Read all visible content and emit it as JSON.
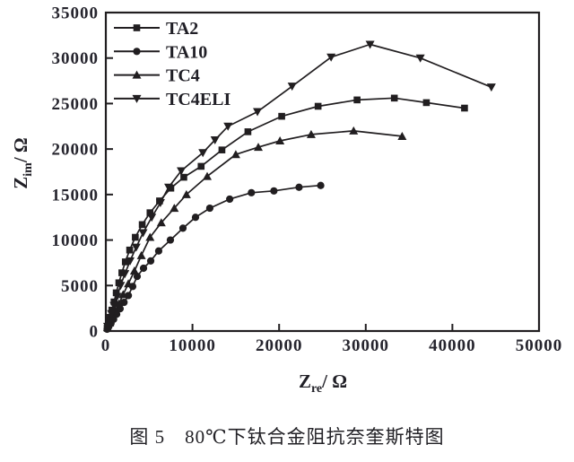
{
  "figure": {
    "caption": "图 5　80℃下钛合金阻抗奈奎斯特图"
  },
  "colors": {
    "background": "#ffffff",
    "ink": "#211e20",
    "text": "#26252e"
  },
  "chart_data": {
    "type": "line",
    "title": "",
    "xlabel": {
      "base": "Z",
      "sub": "re",
      "rest": "/ Ω"
    },
    "ylabel": {
      "base": "Z",
      "sub": "im",
      "rest": "/ Ω"
    },
    "xlim": [
      0,
      50000
    ],
    "ylim": [
      0,
      35000
    ],
    "xticks": [
      0,
      10000,
      20000,
      30000,
      40000,
      50000
    ],
    "yticks": [
      0,
      5000,
      10000,
      15000,
      20000,
      25000,
      30000,
      35000
    ],
    "grid": false,
    "legend_position": "top-left",
    "series": [
      {
        "name": "TA2",
        "marker": "square",
        "points": [
          [
            150,
            300
          ],
          [
            300,
            800
          ],
          [
            500,
            1500
          ],
          [
            700,
            2300
          ],
          [
            950,
            3200
          ],
          [
            1200,
            4200
          ],
          [
            1500,
            5300
          ],
          [
            1850,
            6400
          ],
          [
            2250,
            7600
          ],
          [
            2750,
            8900
          ],
          [
            3400,
            10300
          ],
          [
            4200,
            11700
          ],
          [
            5100,
            13000
          ],
          [
            6200,
            14300
          ],
          [
            7500,
            15700
          ],
          [
            9000,
            16900
          ],
          [
            11000,
            18100
          ],
          [
            13400,
            19900
          ],
          [
            16400,
            21900
          ],
          [
            20300,
            23600
          ],
          [
            24500,
            24700
          ],
          [
            29000,
            25400
          ],
          [
            33300,
            25600
          ],
          [
            37000,
            25100
          ],
          [
            41400,
            24500
          ]
        ]
      },
      {
        "name": "TA10",
        "marker": "circle",
        "points": [
          [
            150,
            200
          ],
          [
            350,
            500
          ],
          [
            600,
            850
          ],
          [
            900,
            1300
          ],
          [
            1250,
            1850
          ],
          [
            1650,
            2450
          ],
          [
            2100,
            3150
          ],
          [
            2600,
            3900
          ],
          [
            3100,
            4900
          ],
          [
            3620,
            6000
          ],
          [
            4350,
            6900
          ],
          [
            5180,
            7700
          ],
          [
            6100,
            8800
          ],
          [
            7450,
            10000
          ],
          [
            8900,
            11300
          ],
          [
            10350,
            12500
          ],
          [
            12000,
            13500
          ],
          [
            14300,
            14500
          ],
          [
            16800,
            15200
          ],
          [
            19400,
            15400
          ],
          [
            22300,
            15800
          ],
          [
            24800,
            16000
          ]
        ]
      },
      {
        "name": "TC4",
        "marker": "triangle-up",
        "points": [
          [
            200,
            400
          ],
          [
            450,
            900
          ],
          [
            750,
            1500
          ],
          [
            1100,
            2200
          ],
          [
            1500,
            3000
          ],
          [
            2000,
            4000
          ],
          [
            2600,
            5200
          ],
          [
            3300,
            6600
          ],
          [
            4100,
            8300
          ],
          [
            5100,
            10300
          ],
          [
            6400,
            11900
          ],
          [
            7900,
            13500
          ],
          [
            9300,
            15000
          ],
          [
            11700,
            17000
          ],
          [
            15000,
            19400
          ],
          [
            17600,
            20200
          ],
          [
            20100,
            20900
          ],
          [
            23700,
            21600
          ],
          [
            28600,
            22000
          ],
          [
            34200,
            21400
          ]
        ]
      },
      {
        "name": "TC4ELI",
        "marker": "triangle-down",
        "points": [
          [
            200,
            500
          ],
          [
            400,
            1100
          ],
          [
            650,
            1900
          ],
          [
            950,
            2800
          ],
          [
            1300,
            3800
          ],
          [
            1700,
            5000
          ],
          [
            2200,
            6300
          ],
          [
            2800,
            7700
          ],
          [
            3500,
            9200
          ],
          [
            4300,
            10800
          ],
          [
            5300,
            12500
          ],
          [
            6300,
            14100
          ],
          [
            7250,
            15800
          ],
          [
            8700,
            17600
          ],
          [
            11200,
            19600
          ],
          [
            12600,
            21000
          ],
          [
            14100,
            22500
          ],
          [
            17500,
            24100
          ],
          [
            21500,
            26900
          ],
          [
            26000,
            30100
          ],
          [
            30500,
            31500
          ],
          [
            36300,
            30000
          ],
          [
            44500,
            26800
          ]
        ]
      }
    ]
  }
}
